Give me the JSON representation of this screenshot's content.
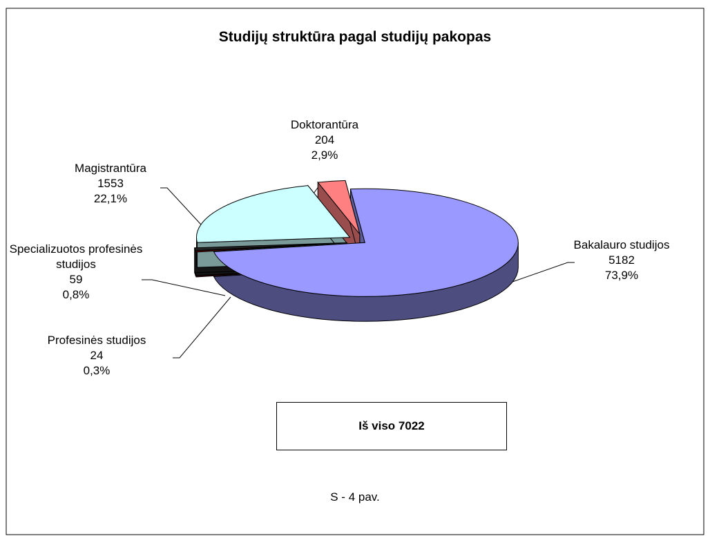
{
  "chart_data": {
    "type": "pie3d",
    "title": "Studijų struktūra pagal studijų pakopas",
    "categories": [
      "Bakalauro studijos",
      "Profesinės studijos",
      "Specializuotos profesinės studijos",
      "Magistrantūra",
      "Doktorantūra"
    ],
    "values": [
      5182,
      24,
      59,
      1553,
      204
    ],
    "percentages": [
      73.9,
      0.3,
      0.8,
      22.1,
      2.9
    ],
    "percentage_labels": [
      "73,9%",
      "0,3%",
      "0,8%",
      "22,1%",
      "2,9%"
    ],
    "colors": [
      "#9999ff",
      "#800000",
      "#222222",
      "#ccffff",
      "#ff8080"
    ],
    "total_box": "Iš viso 7022",
    "caption": "S - 4 pav."
  }
}
